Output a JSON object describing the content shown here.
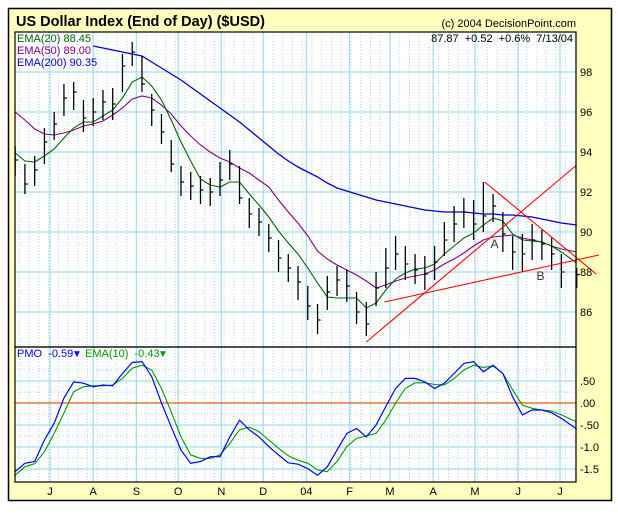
{
  "header": {
    "title": "US Dollar Index (End of Day) ($USD)",
    "copyright": "(c) 2004 DecisionPoint.com",
    "quote": "87.87  +0.52  +0.6%  7/13/04"
  },
  "colors": {
    "background": "#FFFFC0",
    "grid": "#A8DCF0",
    "price_bars": "#000000",
    "ema20": "#006600",
    "ema50": "#800080",
    "ema200": "#0000CC",
    "pmo": "#0000FF",
    "pmo_ema": "#009900",
    "zero_line": "#E06000",
    "trendlines": "#FF0000"
  },
  "chart_data": [
    {
      "type": "line",
      "panel": "price",
      "title": "US Dollar Index (End of Day) ($USD)",
      "y_axis_side": "right",
      "ylim": [
        84.25,
        100
      ],
      "y_ticks": [
        {
          "value": 98,
          "label": "98"
        },
        {
          "value": 96,
          "label": "96"
        },
        {
          "value": 94,
          "label": "94"
        },
        {
          "value": 92,
          "label": "92"
        },
        {
          "value": 90,
          "label": "90"
        },
        {
          "value": 88,
          "label": "88"
        },
        {
          "value": 86,
          "label": "86"
        }
      ],
      "xlim": [
        "2003-06-06",
        "2004-07-13"
      ],
      "grid": true,
      "legend": [
        {
          "key": "ema20",
          "label": "EMA(20) 88.45"
        },
        {
          "key": "ema50",
          "label": "EMA(50) 89.00"
        },
        {
          "key": "ema200",
          "label": "EMA(200) 90.35"
        }
      ],
      "legend_placement": "top-left",
      "dates": [
        "2003-06-06",
        "2003-06-13",
        "2003-06-20",
        "2003-06-27",
        "2003-07-04",
        "2003-07-11",
        "2003-07-18",
        "2003-07-25",
        "2003-08-01",
        "2003-08-08",
        "2003-08-15",
        "2003-08-22",
        "2003-08-29",
        "2003-09-05",
        "2003-09-12",
        "2003-09-19",
        "2003-09-26",
        "2003-10-03",
        "2003-10-10",
        "2003-10-17",
        "2003-10-24",
        "2003-10-31",
        "2003-11-07",
        "2003-11-14",
        "2003-11-21",
        "2003-11-28",
        "2003-12-05",
        "2003-12-12",
        "2003-12-19",
        "2003-12-26",
        "2004-01-02",
        "2004-01-09",
        "2004-01-16",
        "2004-01-23",
        "2004-01-30",
        "2004-02-06",
        "2004-02-13",
        "2004-02-20",
        "2004-02-27",
        "2004-03-05",
        "2004-03-12",
        "2004-03-19",
        "2004-03-26",
        "2004-04-02",
        "2004-04-09",
        "2004-04-16",
        "2004-04-23",
        "2004-04-30",
        "2004-05-07",
        "2004-05-14",
        "2004-05-21",
        "2004-05-28",
        "2004-06-04",
        "2004-06-11",
        "2004-06-18",
        "2004-06-25",
        "2004-07-02",
        "2004-07-13"
      ],
      "high": [
        94.3,
        93.4,
        93.8,
        95.2,
        96.0,
        97.4,
        97.5,
        96.6,
        96.7,
        97.1,
        97.2,
        98.9,
        99.5,
        98.8,
        96.9,
        95.9,
        94.6,
        93.3,
        93.0,
        92.8,
        92.7,
        93.5,
        94.1,
        93.3,
        91.7,
        91.2,
        90.4,
        89.6,
        88.9,
        88.3,
        87.3,
        86.4,
        87.8,
        88.3,
        88.1,
        87.0,
        86.5,
        88.0,
        89.2,
        89.8,
        89.3,
        88.9,
        88.8,
        89.3,
        90.5,
        91.3,
        91.7,
        91.6,
        92.5,
        91.9,
        91.0,
        89.8,
        89.9,
        90.4,
        90.1,
        89.7,
        88.9,
        88.2
      ],
      "low": [
        92.8,
        91.9,
        92.3,
        93.4,
        94.6,
        95.8,
        96.1,
        95.0,
        95.3,
        95.6,
        95.6,
        97.0,
        98.3,
        97.0,
        95.3,
        94.4,
        93.0,
        91.8,
        91.6,
        91.4,
        91.3,
        91.8,
        92.6,
        91.4,
        90.2,
        89.8,
        89.0,
        88.0,
        87.5,
        86.6,
        85.6,
        84.9,
        86.1,
        86.8,
        86.5,
        85.4,
        84.8,
        86.3,
        87.2,
        88.1,
        87.6,
        87.4,
        87.1,
        87.6,
        88.8,
        89.5,
        90.2,
        89.6,
        90.0,
        90.5,
        89.0,
        88.1,
        88.0,
        88.6,
        88.6,
        88.1,
        87.2,
        87.2
      ],
      "close": [
        93.6,
        92.4,
        93.1,
        94.5,
        95.4,
        96.7,
        97.0,
        95.7,
        96.0,
        96.5,
        96.4,
        98.3,
        99.0,
        97.4,
        96.1,
        95.0,
        93.4,
        92.5,
        92.3,
        92.1,
        92.0,
        92.6,
        93.4,
        91.7,
        90.9,
        90.5,
        89.7,
        88.7,
        88.2,
        87.5,
        86.3,
        85.6,
        87.0,
        87.6,
        87.3,
        86.0,
        85.4,
        87.2,
        88.2,
        88.9,
        88.4,
        88.1,
        87.9,
        88.5,
        89.6,
        90.4,
        91.0,
        90.4,
        90.8,
        91.3,
        89.9,
        89.0,
        88.9,
        89.6,
        89.4,
        88.9,
        88.0,
        87.87
      ],
      "ema20": [
        93.95,
        93.55,
        93.5,
        93.8,
        94.15,
        94.7,
        95.2,
        95.5,
        95.5,
        95.8,
        96.1,
        96.7,
        97.5,
        97.75,
        97.3,
        96.6,
        95.6,
        94.5,
        93.55,
        92.65,
        92.35,
        92.25,
        92.5,
        92.5,
        91.9,
        91.35,
        90.75,
        90.05,
        89.45,
        88.9,
        88.2,
        87.45,
        86.75,
        86.7,
        86.7,
        86.7,
        86.2,
        86.45,
        87.1,
        87.65,
        87.95,
        88.15,
        88.2,
        88.4,
        88.9,
        89.3,
        89.7,
        89.95,
        90.35,
        90.7,
        90.55,
        89.9,
        89.6,
        89.55,
        89.5,
        89.3,
        89.0,
        88.45
      ],
      "ema50": [
        96.0,
        95.6,
        95.15,
        94.9,
        94.85,
        94.95,
        95.1,
        95.3,
        95.4,
        95.55,
        95.85,
        96.2,
        96.65,
        96.8,
        96.7,
        96.35,
        95.9,
        95.3,
        94.8,
        94.35,
        94.0,
        93.7,
        93.5,
        93.2,
        92.95,
        92.6,
        92.25,
        91.6,
        91.0,
        90.45,
        89.8,
        89.05,
        88.65,
        88.35,
        88.1,
        87.85,
        87.55,
        87.2,
        87.35,
        87.55,
        87.7,
        87.8,
        87.9,
        88.1,
        88.4,
        88.65,
        88.95,
        89.3,
        89.6,
        89.75,
        89.8,
        89.85,
        89.7,
        89.6,
        89.5,
        89.3,
        89.15,
        89.0
      ],
      "ema200": [
        null,
        null,
        null,
        null,
        null,
        null,
        null,
        null,
        99.3,
        99.2,
        99.1,
        99.0,
        98.9,
        98.8,
        98.5,
        98.2,
        97.9,
        97.6,
        97.25,
        96.9,
        96.55,
        96.2,
        95.85,
        95.5,
        95.1,
        94.7,
        94.3,
        93.9,
        93.55,
        93.25,
        93.0,
        92.75,
        92.45,
        92.2,
        92.05,
        91.9,
        91.75,
        91.6,
        91.5,
        91.4,
        91.3,
        91.2,
        91.1,
        91.05,
        91.0,
        91.0,
        91.0,
        90.95,
        90.9,
        90.9,
        90.85,
        90.85,
        90.8,
        90.75,
        90.65,
        90.55,
        90.45,
        90.35
      ],
      "trendlines": [
        {
          "from": {
            "date": "2004-02-13",
            "value": 84.5
          },
          "to": {
            "date": "2004-07-13",
            "value": 93.35
          }
        },
        {
          "from": {
            "date": "2004-02-26",
            "value": 86.5
          },
          "to": {
            "date": "2004-07-29",
            "value": 88.85
          }
        },
        {
          "from": {
            "date": "2004-05-08",
            "value": 92.5
          },
          "to": {
            "date": "2004-07-27",
            "value": 87.9
          }
        }
      ],
      "annotations": [
        {
          "text": "A",
          "date": "2004-05-15",
          "value": 89.2
        },
        {
          "text": "B",
          "date": "2004-06-17",
          "value": 87.6
        }
      ]
    },
    {
      "type": "line",
      "panel": "pmo",
      "y_axis_side": "right",
      "ylim": [
        -1.76,
        1.24
      ],
      "y_ticks": [
        {
          "value": 0.5,
          "label": ".50"
        },
        {
          "value": 0,
          "label": ".00"
        },
        {
          "value": -0.5,
          "label": "-.50"
        },
        {
          "value": -1.0,
          "label": "-1.0"
        },
        {
          "value": -1.5,
          "label": "-1.5"
        }
      ],
      "grid": true,
      "legend": [
        {
          "key": "pmo",
          "label": "PMO  -0.59",
          "arrow": "down"
        },
        {
          "key": "pmo_ema",
          "label": "EMA(10)  -0.43",
          "arrow": "down"
        }
      ],
      "legend_placement": "top-left",
      "zero_line": 0,
      "pmo": [
        -1.56,
        -1.37,
        -1.33,
        -0.84,
        -0.46,
        0.11,
        0.48,
        0.45,
        0.37,
        0.41,
        0.39,
        0.67,
        0.92,
        0.94,
        0.6,
        0.0,
        -0.54,
        -1.07,
        -1.37,
        -1.33,
        -1.22,
        -1.22,
        -0.77,
        -0.39,
        -0.61,
        -0.77,
        -0.99,
        -1.18,
        -1.36,
        -1.39,
        -1.49,
        -1.64,
        -1.45,
        -1.07,
        -0.69,
        -0.58,
        -0.77,
        -0.5,
        -0.08,
        0.33,
        0.56,
        0.56,
        0.48,
        0.33,
        0.45,
        0.67,
        0.9,
        0.94,
        0.71,
        0.86,
        0.67,
        0.14,
        -0.27,
        -0.16,
        -0.16,
        -0.22,
        -0.35,
        -0.59
      ],
      "pmo_ema": [
        -1.64,
        -1.45,
        -1.38,
        -1.11,
        -0.69,
        -0.23,
        0.26,
        0.37,
        0.39,
        0.39,
        0.41,
        0.56,
        0.79,
        0.86,
        0.75,
        0.33,
        -0.2,
        -0.77,
        -1.18,
        -1.26,
        -1.26,
        -1.18,
        -0.92,
        -0.61,
        -0.55,
        -0.65,
        -0.84,
        -1.03,
        -1.2,
        -1.3,
        -1.37,
        -1.52,
        -1.56,
        -1.33,
        -0.99,
        -0.8,
        -0.75,
        -0.69,
        -0.39,
        0.0,
        0.33,
        0.46,
        0.46,
        0.42,
        0.41,
        0.56,
        0.75,
        0.86,
        0.81,
        0.84,
        0.67,
        0.3,
        -0.05,
        -0.12,
        -0.16,
        -0.18,
        -0.27,
        -0.43
      ]
    }
  ],
  "x_ticks": [
    {
      "date": "2003-07-01",
      "label": "J"
    },
    {
      "date": "2003-08-01",
      "label": "A"
    },
    {
      "date": "2003-09-01",
      "label": "S"
    },
    {
      "date": "2003-10-01",
      "label": "O"
    },
    {
      "date": "2003-11-01",
      "label": "N"
    },
    {
      "date": "2003-12-01",
      "label": "D"
    },
    {
      "date": "2004-01-01",
      "label": "04"
    },
    {
      "date": "2004-02-01",
      "label": "F"
    },
    {
      "date": "2004-03-01",
      "label": "M"
    },
    {
      "date": "2004-04-01",
      "label": "A"
    },
    {
      "date": "2004-05-01",
      "label": "M"
    },
    {
      "date": "2004-06-01",
      "label": "J"
    },
    {
      "date": "2004-07-01",
      "label": "J"
    }
  ]
}
